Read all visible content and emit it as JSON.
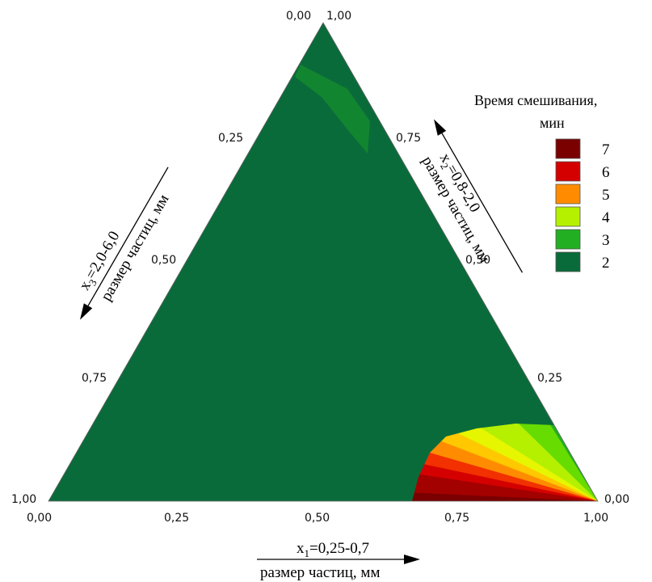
{
  "chart_data": {
    "type": "ternary-contour",
    "ternary_ticks": [
      "0,00",
      "0,25",
      "0,50",
      "0,75",
      "1,00"
    ],
    "axes": {
      "x1": {
        "symbol": "x",
        "subscript": "1",
        "range": "=0,25-0,7",
        "caption": "размер частиц, мм"
      },
      "x2": {
        "symbol": "x",
        "subscript": "2",
        "range": "=0,8-2,0",
        "caption": "размер частиц, мм"
      },
      "x3": {
        "symbol": "x",
        "subscript": "3",
        "range": "=2,0-6,0",
        "caption": "размер частиц, мм"
      }
    },
    "legend": {
      "title": "Время смешивания,",
      "unit": "мин",
      "placement": "right",
      "items": [
        {
          "label": "7",
          "color": "#7a0000"
        },
        {
          "label": "6",
          "color": "#d40000"
        },
        {
          "label": "5",
          "color": "#ff8c00"
        },
        {
          "label": "4",
          "color": "#b4f000"
        },
        {
          "label": "3",
          "color": "#22b022"
        },
        {
          "label": "2",
          "color": "#0a6b3a"
        }
      ]
    },
    "contour_levels": [
      7,
      6.5,
      6,
      5.5,
      5,
      4.5,
      4,
      3.5,
      3,
      2.5,
      2
    ],
    "level_colors": [
      "#7a0000",
      "#a30000",
      "#d40000",
      "#f23000",
      "#ff8c00",
      "#ffc800",
      "#e6f500",
      "#b4f000",
      "#66dc00",
      "#22b022",
      "#0a6b3a"
    ]
  }
}
